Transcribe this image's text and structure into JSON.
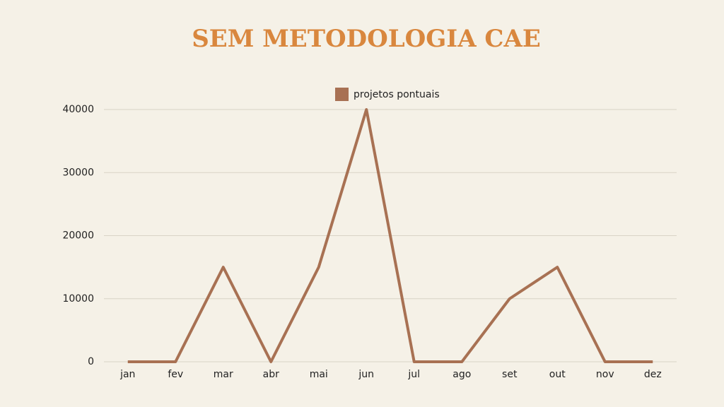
{
  "chart_data": {
    "type": "line",
    "title": "SEM METODOLOGIA CAE",
    "categories": [
      "jan",
      "fev",
      "mar",
      "abr",
      "mai",
      "jun",
      "jul",
      "ago",
      "set",
      "out",
      "nov",
      "dez"
    ],
    "series": [
      {
        "name": "projetos pontuais",
        "color": "#a87153",
        "values": [
          0,
          0,
          15000,
          0,
          15000,
          40000,
          0,
          0,
          10000,
          15000,
          0,
          0
        ]
      }
    ],
    "ylim": [
      0,
      40000
    ],
    "yticks": [
      0,
      10000,
      20000,
      30000,
      40000
    ],
    "grid": true,
    "legend": "top"
  }
}
